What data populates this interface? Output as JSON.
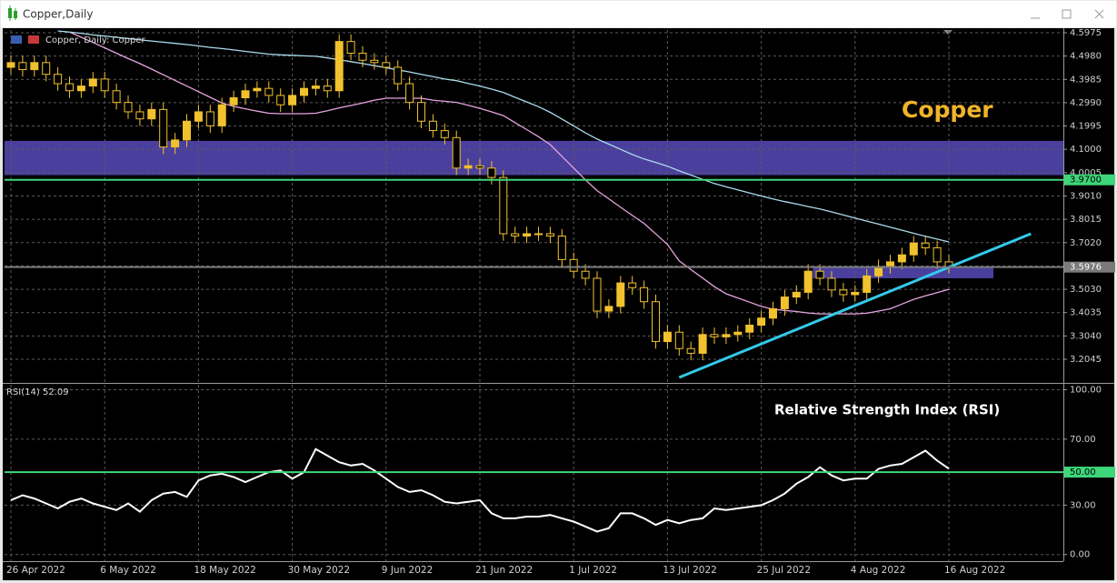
{
  "window_title": "Copper,Daily",
  "chart_data": [
    {
      "type": "candlestick",
      "title": "Copper, Daily:  Copper",
      "annotation": "Copper",
      "categories": [
        "26 Apr 2022",
        null,
        null,
        null,
        null,
        null,
        null,
        null,
        "6 May 2022",
        null,
        null,
        null,
        null,
        null,
        null,
        null,
        "18 May 2022",
        null,
        null,
        null,
        null,
        null,
        null,
        null,
        "30 May 2022",
        null,
        null,
        null,
        null,
        null,
        null,
        null,
        "9 Jun 2022",
        null,
        null,
        null,
        null,
        null,
        null,
        null,
        "21 Jun 2022",
        null,
        null,
        null,
        null,
        null,
        null,
        null,
        "1 Jul 2022",
        null,
        null,
        null,
        null,
        null,
        null,
        null,
        "13 Jul 2022",
        null,
        null,
        null,
        null,
        null,
        null,
        null,
        "25 Jul 2022",
        null,
        null,
        null,
        null,
        null,
        null,
        null,
        "4 Aug 2022",
        null,
        null,
        null,
        null,
        null,
        null,
        null,
        "16 Aug 2022"
      ],
      "open": [
        4.45,
        4.47,
        4.44,
        4.47,
        4.42,
        4.38,
        4.35,
        4.37,
        4.4,
        4.35,
        4.3,
        4.26,
        4.23,
        4.27,
        4.11,
        4.14,
        4.22,
        4.26,
        4.2,
        4.29,
        4.32,
        4.35,
        4.36,
        4.33,
        4.29,
        4.33,
        4.36,
        4.37,
        4.35,
        4.56,
        4.51,
        4.48,
        4.47,
        4.45,
        4.38,
        4.3,
        4.22,
        4.18,
        4.15,
        4.02,
        4.03,
        4.02,
        3.98,
        3.74,
        3.73,
        3.74,
        3.74,
        3.73,
        3.63,
        3.58,
        3.55,
        3.41,
        3.43,
        3.53,
        3.51,
        3.45,
        3.28,
        3.32,
        3.25,
        3.23,
        3.31,
        3.3,
        3.31,
        3.32,
        3.35,
        3.38,
        3.42,
        3.47,
        3.49,
        3.58,
        3.55,
        3.5,
        3.48,
        3.49,
        3.56,
        3.6,
        3.62,
        3.65,
        3.7,
        3.68,
        3.62
      ],
      "high": [
        4.5,
        4.5,
        4.5,
        4.5,
        4.45,
        4.41,
        4.4,
        4.43,
        4.43,
        4.38,
        4.33,
        4.29,
        4.3,
        4.3,
        4.17,
        4.25,
        4.29,
        4.29,
        4.32,
        4.35,
        4.38,
        4.39,
        4.39,
        4.36,
        4.36,
        4.39,
        4.4,
        4.4,
        4.59,
        4.59,
        4.54,
        4.51,
        4.5,
        4.48,
        4.41,
        4.33,
        4.25,
        4.21,
        4.18,
        4.06,
        4.06,
        4.05,
        4.01,
        3.77,
        3.77,
        3.77,
        3.77,
        3.76,
        3.66,
        3.61,
        3.58,
        3.46,
        3.56,
        3.56,
        3.54,
        3.48,
        3.35,
        3.35,
        3.28,
        3.34,
        3.34,
        3.34,
        3.35,
        3.38,
        3.41,
        3.45,
        3.5,
        3.52,
        3.61,
        3.61,
        3.58,
        3.53,
        3.52,
        3.59,
        3.63,
        3.65,
        3.68,
        3.73,
        3.73,
        3.71,
        3.65
      ],
      "low": [
        4.42,
        4.41,
        4.41,
        4.39,
        4.35,
        4.32,
        4.32,
        4.34,
        4.32,
        4.27,
        4.23,
        4.2,
        4.2,
        4.08,
        4.08,
        4.11,
        4.19,
        4.17,
        4.17,
        4.26,
        4.29,
        4.32,
        4.3,
        4.26,
        4.26,
        4.3,
        4.33,
        4.32,
        4.32,
        4.48,
        4.45,
        4.44,
        4.42,
        4.35,
        4.27,
        4.19,
        4.15,
        4.12,
        3.99,
        3.99,
        3.99,
        3.95,
        3.71,
        3.7,
        3.7,
        3.71,
        3.7,
        3.6,
        3.55,
        3.52,
        3.38,
        3.38,
        3.4,
        3.48,
        3.42,
        3.25,
        3.25,
        3.22,
        3.2,
        3.2,
        3.27,
        3.27,
        3.28,
        3.29,
        3.32,
        3.35,
        3.39,
        3.44,
        3.46,
        3.52,
        3.47,
        3.45,
        3.45,
        3.46,
        3.53,
        3.57,
        3.59,
        3.62,
        3.65,
        3.59,
        3.57
      ],
      "close": [
        4.47,
        4.44,
        4.47,
        4.42,
        4.38,
        4.35,
        4.37,
        4.4,
        4.35,
        4.3,
        4.26,
        4.23,
        4.27,
        4.11,
        4.14,
        4.22,
        4.26,
        4.2,
        4.29,
        4.32,
        4.35,
        4.36,
        4.33,
        4.29,
        4.33,
        4.36,
        4.37,
        4.35,
        4.56,
        4.51,
        4.48,
        4.47,
        4.45,
        4.38,
        4.3,
        4.22,
        4.18,
        4.15,
        4.02,
        4.03,
        4.02,
        3.98,
        3.74,
        3.73,
        3.74,
        3.74,
        3.73,
        3.63,
        3.58,
        3.55,
        3.41,
        3.43,
        3.53,
        3.51,
        3.45,
        3.28,
        3.32,
        3.25,
        3.23,
        3.31,
        3.3,
        3.31,
        3.32,
        3.35,
        3.38,
        3.42,
        3.47,
        3.49,
        3.58,
        3.55,
        3.5,
        3.48,
        3.49,
        3.56,
        3.6,
        3.62,
        3.65,
        3.7,
        3.68,
        3.62,
        3.5976
      ],
      "color": "#f2c12e",
      "series": [
        {
          "color": "#a9dcec",
          "values": [
            null,
            null,
            null,
            null,
            4.605,
            4.6,
            4.595,
            4.588,
            4.583,
            4.578,
            4.573,
            4.567,
            4.562,
            4.557,
            4.552,
            4.547,
            4.541,
            4.535,
            4.53,
            4.524,
            4.518,
            4.512,
            4.506,
            4.503,
            4.501,
            4.499,
            4.497,
            4.49,
            4.482,
            4.474,
            4.466,
            4.457,
            4.448,
            4.439,
            4.43,
            4.42,
            4.41,
            4.4,
            4.393,
            4.381,
            4.37,
            4.357,
            4.343,
            4.322,
            4.302,
            4.282,
            4.258,
            4.229,
            4.2,
            4.17,
            4.144,
            4.122,
            4.1,
            4.078,
            4.059,
            4.044,
            4.028,
            4.008,
            3.99,
            3.972,
            3.954,
            3.94,
            3.927,
            3.914,
            3.901,
            3.888,
            3.877,
            3.867,
            3.856,
            3.846,
            3.833,
            3.82,
            3.807,
            3.794,
            3.781,
            3.768,
            3.755,
            3.742,
            3.729,
            3.717,
            3.705
          ]
        },
        {
          "color": "#e7a4df",
          "values": [
            null,
            null,
            null,
            null,
            null,
            4.6,
            4.578,
            4.556,
            4.533,
            4.51,
            4.487,
            4.466,
            4.442,
            4.418,
            4.394,
            4.37,
            4.346,
            4.322,
            4.298,
            4.283,
            4.273,
            4.263,
            4.254,
            4.252,
            4.252,
            4.252,
            4.254,
            4.265,
            4.277,
            4.287,
            4.298,
            4.31,
            4.318,
            4.318,
            4.318,
            4.318,
            4.31,
            4.305,
            4.3,
            4.288,
            4.275,
            4.26,
            4.244,
            4.214,
            4.184,
            4.154,
            4.12,
            4.07,
            4.02,
            3.97,
            3.924,
            3.889,
            3.853,
            3.818,
            3.784,
            3.739,
            3.694,
            3.624,
            3.587,
            3.551,
            3.514,
            3.484,
            3.466,
            3.448,
            3.43,
            3.418,
            3.413,
            3.408,
            3.402,
            3.398,
            3.398,
            3.398,
            3.398,
            3.401,
            3.41,
            3.42,
            3.44,
            3.46,
            3.475,
            3.489,
            3.503
          ]
        }
      ],
      "zones": [
        {
          "y": [
            3.99,
            4.136
          ],
          "color": "#4b3f9e"
        },
        {
          "x": [
            68.4,
            83.8
          ],
          "y": [
            3.55,
            3.5966
          ],
          "color": "#4b3f9e"
        }
      ],
      "trendline": {
        "x": [
          57,
          87
        ],
        "y": [
          3.127,
          3.74
        ],
        "color": "#33c9ea"
      },
      "levels": [
        {
          "value": 3.97,
          "label": "3.9700",
          "color": "#3ed67a"
        },
        {
          "value": 3.5976,
          "color": "#7a7a7a"
        }
      ],
      "ylim": [
        3.1075,
        4.609
      ],
      "yticks": [
        4.5975,
        {
          "value": 4.498,
          "label": "4.4980"
        },
        4.3985,
        {
          "value": 4.299,
          "label": "4.2990"
        },
        4.1995,
        {
          "value": 4.1,
          "label": "4.1000"
        },
        4.0005,
        {
          "value": 3.901,
          "label": "3.9010"
        },
        3.8015,
        {
          "value": 3.702,
          "label": "3.7020"
        },
        3.6025,
        {
          "value": 3.503,
          "label": "3.5030"
        },
        3.4035,
        {
          "value": 3.304,
          "label": "3.3040"
        },
        3.2045
      ],
      "grid": true
    },
    {
      "type": "line",
      "title": "RSI(14) 52.09",
      "annotation": "Relative Strength Index (RSI)",
      "series": [
        {
          "color": "#ffffff",
          "values": [
            33,
            36,
            34,
            31,
            28,
            32,
            34,
            31,
            29,
            27,
            31,
            26,
            33,
            37,
            38,
            35,
            45,
            48,
            49,
            47,
            44,
            47,
            50,
            51,
            46,
            50,
            64,
            60,
            56,
            54,
            55,
            51,
            46,
            41,
            38,
            39,
            36,
            32,
            31,
            32,
            33,
            25,
            22,
            22,
            23,
            23,
            24,
            22,
            20,
            17,
            14,
            16,
            25,
            25,
            22,
            18,
            21,
            19,
            21,
            22,
            28,
            27,
            28,
            29,
            30,
            33,
            37,
            43,
            47,
            53,
            48,
            45,
            46,
            46,
            52,
            54,
            55,
            59,
            63,
            57,
            52.09
          ]
        }
      ],
      "levels": [
        {
          "value": 50,
          "label": "50.00",
          "color": "#3ed67a"
        }
      ],
      "ylim": [
        -4,
        103
      ],
      "yticks": [
        {
          "value": 100,
          "label": "100.00"
        },
        {
          "value": 70,
          "label": "70.00"
        },
        {
          "value": 30,
          "label": "30.00"
        },
        {
          "value": 0,
          "label": "0.00"
        }
      ],
      "grid": true
    }
  ]
}
